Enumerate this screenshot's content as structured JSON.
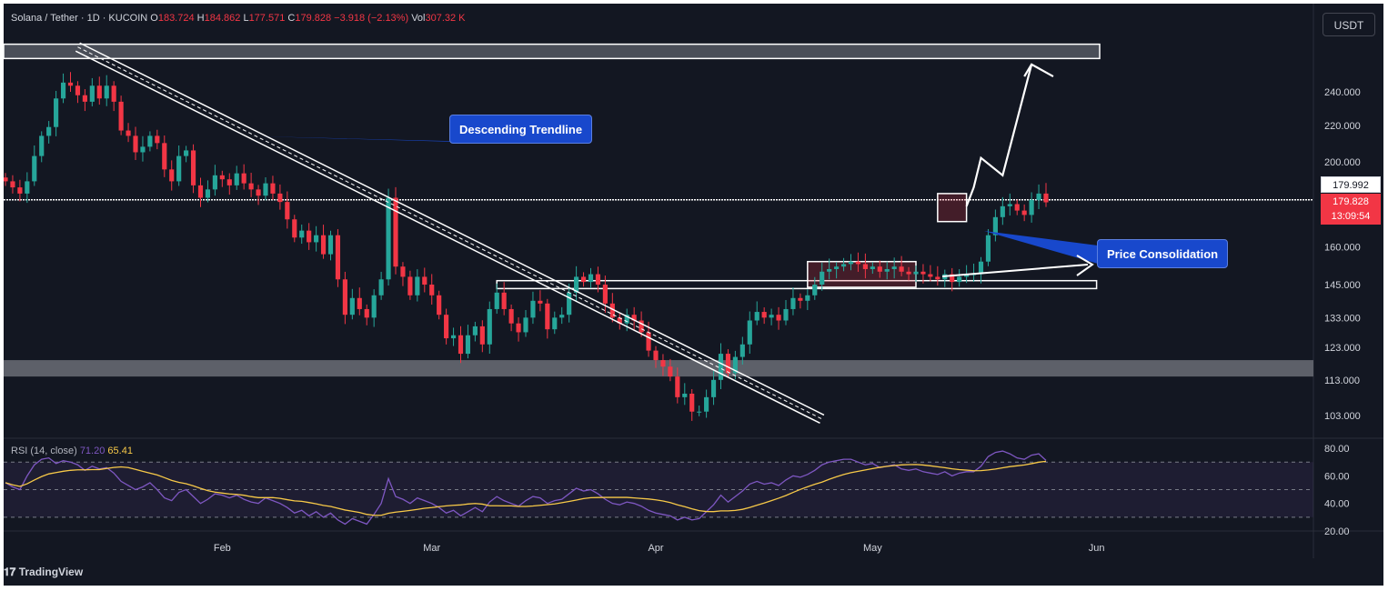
{
  "header": {
    "symbol": "Solana / Tether",
    "interval": "1D",
    "exchange": "KUCOIN",
    "o_label": "O",
    "o_value": "183.724",
    "h_label": "H",
    "h_value": "184.862",
    "l_label": "L",
    "l_value": "177.571",
    "c_label": "C",
    "c_value": "179.828",
    "change": "−3.918 (−2.13%)",
    "vol_label": "Vol",
    "vol_value": "307.32 K"
  },
  "unit_button": "USDT",
  "price_tags": {
    "current_label": "179.992",
    "last_price": "179.828",
    "countdown": "13:09:54"
  },
  "annotations": {
    "trendline_label": "Descending Trendline",
    "consolidation_label": "Price Consolidation"
  },
  "rsi_legend": {
    "label": "RSI (14, close)",
    "rsi_value": "71.20",
    "ma_value": "65.41"
  },
  "watermark": "TradingView",
  "colors": {
    "background": "#131722",
    "up": "#26a69a",
    "down": "#f23645",
    "rsi_line": "#7e57c2",
    "rsi_ma": "#f7c948",
    "callout": "#1848cc"
  },
  "chart_data": {
    "type": "candlestick",
    "price_axis": {
      "scale": "log",
      "ticks": [
        103,
        113,
        123,
        133,
        145,
        160,
        200,
        220,
        240
      ],
      "tick_labels": [
        "103.000",
        "113.000",
        "123.000",
        "133.000",
        "145.000",
        "160.000",
        "200.000",
        "220.000",
        "240.000"
      ],
      "range": [
        97,
        275
      ]
    },
    "time_axis": {
      "labels": [
        "Feb",
        "Mar",
        "Apr",
        "May",
        "Jun"
      ],
      "label_dates": [
        "2024-02-01",
        "2024-03-01",
        "2024-04-01",
        "2024-05-01",
        "2024-06-01"
      ],
      "range": [
        "2024-01-02",
        "2024-06-30"
      ]
    },
    "start_date": "2024-01-02",
    "closes": [
      190,
      187,
      184,
      190,
      203,
      214,
      219,
      236,
      246,
      244,
      238,
      234,
      244,
      236,
      244,
      234,
      217,
      214,
      205,
      208,
      214,
      210,
      196,
      190,
      203,
      206,
      188,
      182,
      186,
      193,
      191,
      188,
      194,
      189,
      186,
      183,
      189,
      184,
      180,
      172,
      164,
      167,
      162,
      165,
      157,
      165,
      147,
      134,
      140,
      136,
      133,
      141,
      147,
      182,
      152,
      148,
      141,
      148,
      145,
      141,
      134,
      126,
      127,
      121,
      127,
      130,
      124,
      136,
      142,
      136,
      131,
      128,
      133,
      139,
      138,
      129,
      133,
      134,
      142,
      148,
      146,
      149,
      145,
      138,
      133,
      131,
      134,
      132,
      128,
      122,
      119,
      117,
      114,
      108,
      109,
      104,
      104,
      108,
      113,
      121,
      115,
      120,
      124,
      132,
      135,
      133,
      134,
      132,
      136,
      140,
      139,
      141,
      145,
      150,
      151,
      152,
      153,
      154,
      153,
      151,
      152,
      150,
      151,
      152,
      150,
      149,
      150,
      149,
      148,
      147,
      149,
      146,
      148,
      149,
      149,
      154,
      165,
      173,
      178,
      179,
      176,
      174,
      181,
      184,
      179.828
    ],
    "rsi": [
      55,
      52,
      50,
      60,
      68,
      72,
      73,
      69,
      71,
      70,
      68,
      64,
      67,
      65,
      66,
      62,
      56,
      53,
      50,
      52,
      55,
      50,
      44,
      42,
      48,
      50,
      45,
      40,
      43,
      47,
      46,
      44,
      46,
      43,
      41,
      40,
      44,
      42,
      40,
      37,
      33,
      35,
      31,
      34,
      30,
      33,
      28,
      25,
      29,
      27,
      25,
      32,
      40,
      58,
      45,
      43,
      40,
      44,
      42,
      40,
      37,
      33,
      35,
      31,
      34,
      37,
      34,
      41,
      45,
      42,
      40,
      38,
      42,
      45,
      44,
      40,
      42,
      43,
      47,
      51,
      49,
      50,
      47,
      43,
      40,
      39,
      41,
      40,
      38,
      35,
      33,
      32,
      31,
      28,
      30,
      28,
      29,
      34,
      39,
      46,
      41,
      45,
      49,
      54,
      56,
      54,
      55,
      53,
      57,
      60,
      59,
      61,
      64,
      68,
      70,
      71,
      72,
      72,
      70,
      68,
      69,
      66,
      67,
      68,
      65,
      64,
      65,
      63,
      62,
      61,
      63,
      60,
      62,
      63,
      63,
      67,
      74,
      77,
      78,
      76,
      73,
      72,
      75,
      76,
      71.2
    ],
    "rsi_axis": {
      "ticks": [
        20,
        40,
        60,
        80
      ],
      "tick_labels": [
        "20.00",
        "40.00",
        "60.00",
        "80.00"
      ],
      "bands": [
        30,
        50,
        70
      ],
      "range": [
        20,
        82
      ]
    },
    "horizontal_levels": {
      "resistance": 181,
      "support_zone": [
        114,
        119
      ],
      "top_zone": [
        262,
        272
      ],
      "breakout_level": 145
    },
    "consolidation_boxes": [
      {
        "start": "2024-04-22",
        "end": "2024-05-07",
        "low": 144,
        "high": 154
      },
      {
        "start": "2024-05-10",
        "end": "2024-05-14",
        "low": 171,
        "high": 184
      }
    ],
    "trendline": {
      "from": [
        "2024-01-12",
        270
      ],
      "to": [
        "2024-04-24",
        102
      ]
    },
    "projection": [
      [
        "2024-05-14",
        178
      ],
      [
        "2024-05-15",
        187
      ],
      [
        "2024-05-16",
        202
      ],
      [
        "2024-05-19",
        193
      ],
      [
        "2024-05-23",
        258
      ],
      [
        "2024-05-22",
        250
      ],
      [
        "2024-05-23",
        258
      ],
      [
        "2024-05-26",
        250
      ]
    ]
  }
}
